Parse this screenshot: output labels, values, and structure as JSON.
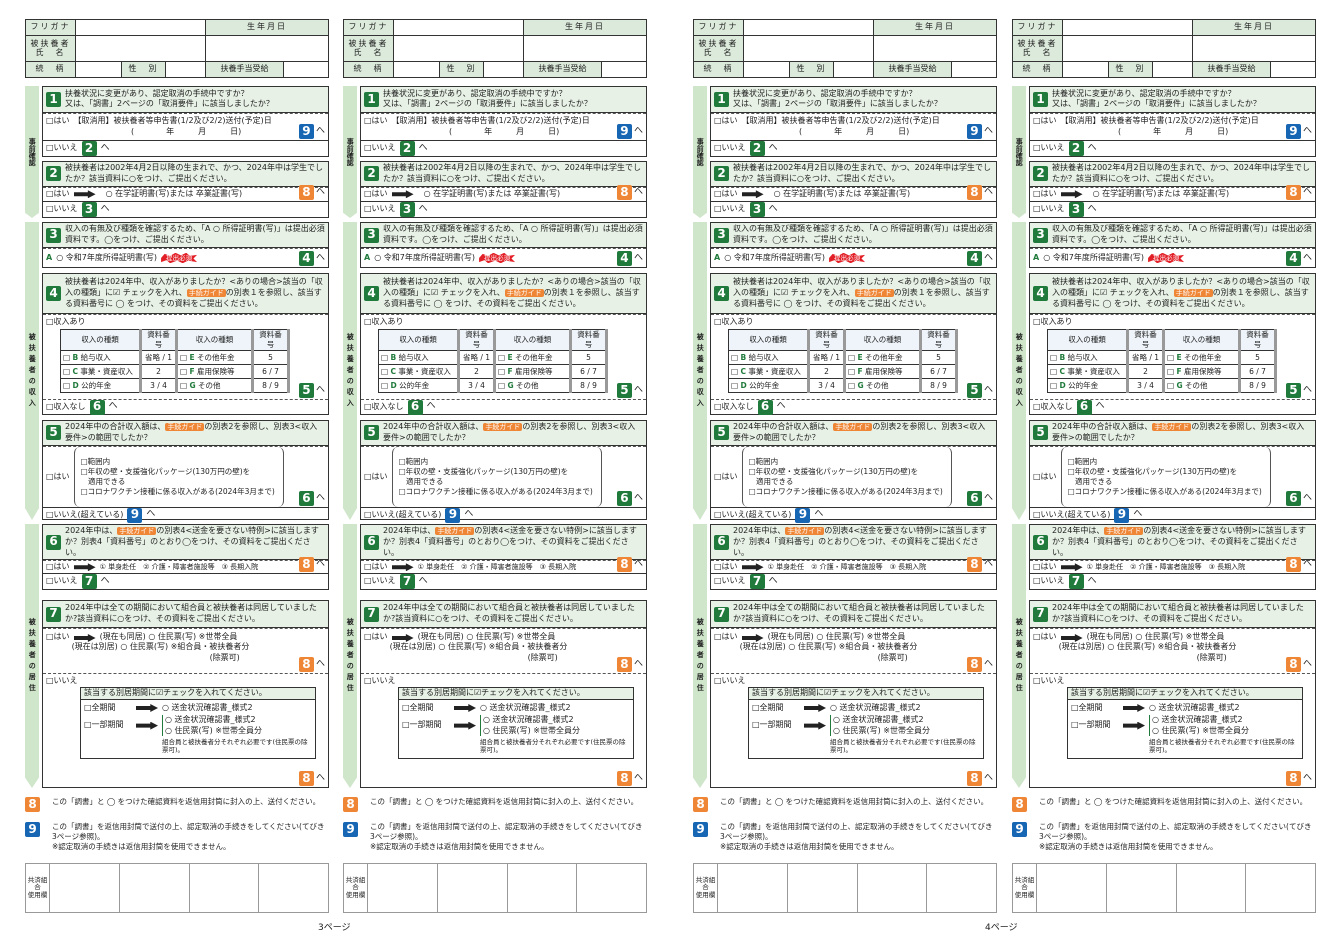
{
  "header": {
    "furigana": "フリガナ",
    "birth": "生年月日",
    "name": "被扶養者\n氏　名",
    "relation": "続　柄",
    "sex": "性　別",
    "allowance": "扶養手当受給"
  },
  "side": {
    "pre": "事前確認",
    "income": "被扶養者の収入",
    "residence": "被扶養者の居住"
  },
  "s1": {
    "num": "1",
    "q": "扶養状況に変更があり、認定取消の手続中ですか？\n又は、「調書」2ページの「取消要件」に該当しましたか？",
    "yes": "□はい　【取消用】被扶養者等申告書(1/2及び2/2)送付(予定)日",
    "date": "(　　　　年　　　月　　　日)",
    "yes_go": "9",
    "no": "□いいえ",
    "no_go": "2"
  },
  "s2": {
    "num": "2",
    "q": "被扶養者は2002年4月2日以降の生まれで、かつ、2024年中は学生でしたか？該当資料に○をつけ、ご提出ください。",
    "yes": "□はい",
    "doc": "○ 在学証明書(写)または 卒業証書(写)",
    "yes_go": "8",
    "no": "□いいえ",
    "no_go": "3"
  },
  "s3": {
    "num": "3",
    "q": "収入の有無及び種類を確認するため、「A ○ 所得証明書(写)」は提出必須資料です。◯をつけ、ご提出ください。",
    "a_letter": "A",
    "doc": "○ 令和7年度所得証明書(写)",
    "required": "提出必須",
    "go": "4"
  },
  "s4": {
    "num": "4",
    "q1": "被扶養者は2024年中、収入がありましたか？<ありの場合>該当の「収入の種類」に☑ チェックを入れ、",
    "guide": "手続ガイド",
    "q2": "の別表１を参照し、該当する資料番号に ◯ をつけ、その資料をご提出ください。",
    "yes": "□収入あり",
    "table_header": [
      "収入の種類",
      "資料番号",
      "収入の種類",
      "資料番号"
    ],
    "table_rows": [
      [
        "B",
        "給与収入",
        "省略 / 1",
        "E",
        "その他年金",
        "5"
      ],
      [
        "C",
        "事業・資産収入",
        "2",
        "F",
        "雇用保険等",
        "6 / 7"
      ],
      [
        "D",
        "公的年金",
        "3 / 4",
        "G",
        "その他",
        "8 / 9"
      ]
    ],
    "yes_go": "5",
    "no": "□収入なし",
    "no_go": "6"
  },
  "s5": {
    "num": "5",
    "q1": "2024年中の合計収入額は、",
    "guide": "手続ガイド",
    "q2": "の別表2を参照し、別表3<収入要件>の範囲でしたか？",
    "yes": "□はい",
    "opts": [
      "□範囲内",
      "□年収の壁・支援強化パッケージ(130万円の壁)を\n　適用できる",
      "□コロナワクチン接種に係る収入がある(2024年3月まで)"
    ],
    "yes_go": "6",
    "no": "□いいえ(超えている)",
    "no_go": "9"
  },
  "s6": {
    "num": "6",
    "q1": "2024年中は、",
    "guide": "手続ガイド",
    "q2": "の別表4<送金を要さない特例>に該当しますか？別表4「資料番号」のとおり◯をつけ、その資料をご提出ください。",
    "yes": "□はい",
    "opts": "① 単身赴任　② 介護・障害者施設等　③ 長期入院",
    "yes_go": "8",
    "no": "□いいえ",
    "no_go": "7"
  },
  "s7": {
    "num": "7",
    "q": "2024年中は全ての期間において組合員と被扶養者は同居していましたか?該当資料に○をつけ、その資料をご提出ください。",
    "yes": "□はい",
    "same": "(現在も同居)",
    "same_doc": "○ 住民票(写) ※世帯全員",
    "sep": "(現在は別居)",
    "sep_doc": "○ 住民票(写) ※組合員・被扶養者分",
    "sep_doc2": "(除票可)",
    "yes_go": "8",
    "no": "□いいえ",
    "box_title": "該当する別居期間に☑チェックを入れてください。",
    "full": "□全期間",
    "full_doc": "○ 送金状況確認書_様式2",
    "part": "□一部期間",
    "part_doc1": "○ 送金状況確認書_様式2",
    "part_doc2": "○ 住民票(写) ※世帯全員分",
    "part_note": "組合員と被扶養者分それぞれ必要です(住民票の除票可)。",
    "no_go": "8"
  },
  "notes": {
    "n8_num": "8",
    "n8": "この「調書」と ◯ をつけた確認資料を返信用封筒に封入の上、送付ください。",
    "n9_num": "9",
    "n9": "この「調書」を返信用封筒で送付の上、認定取消の手続きをしてください(てびき3ページ参照)。\n※認定取消の手続きは返信用封筒を使用できません。"
  },
  "office": "共済組合\n使用欄",
  "he": "へ",
  "pages": [
    "3ページ",
    "4ページ"
  ],
  "colors": {
    "green": "#1f7a3b",
    "orange": "#ef8636",
    "blue": "#1766b3",
    "header_bg": "#e7f1e5"
  }
}
